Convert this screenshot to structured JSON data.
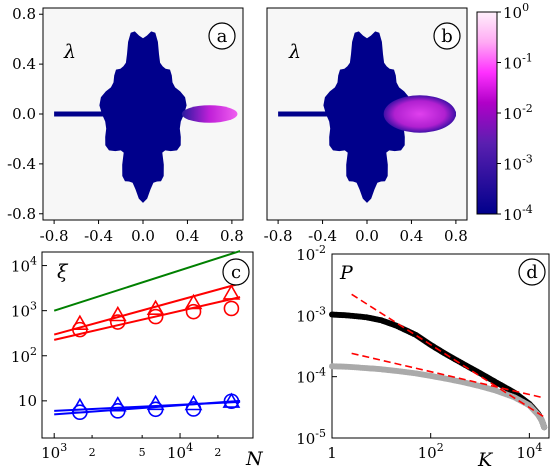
{
  "colors": {
    "density_low": "#00008b",
    "density_high": "#ff00ff",
    "neutral": "#f7f7f7",
    "power_law_green": "#008000",
    "fit_red": "#ff0000",
    "blue": "#0000ff",
    "black": "#000000",
    "gray": "#aaaaaa",
    "dashed_red": "#ff0000"
  },
  "chart_data": [
    {
      "id": "a",
      "type": "heatmap",
      "panel_label": "a",
      "symbol": "λ",
      "xlim": [
        -0.9,
        0.9
      ],
      "ylim": [
        -0.85,
        0.85
      ],
      "xticks": [
        "-0.8",
        "-0.4",
        "0.0",
        "0.4",
        "0.8"
      ],
      "xtick_values": [
        -0.8,
        -0.4,
        0.0,
        0.4,
        0.8
      ],
      "yticks": [
        "0.8",
        "0.4",
        "0.0",
        "-0.4",
        "-0.8"
      ],
      "ytick_values": [
        0.8,
        0.4,
        0.0,
        -0.4,
        -0.8
      ],
      "regions": [
        {
          "shape": "cloud",
          "center": [
            0.0,
            0.0
          ],
          "rx": 0.37,
          "ry": 0.66,
          "density": 0.0003
        },
        {
          "shape": "lobe",
          "x_range": [
            0.35,
            0.85
          ],
          "half_width": 0.07,
          "density": 0.05
        }
      ]
    },
    {
      "id": "b",
      "type": "heatmap",
      "panel_label": "b",
      "symbol": "λ",
      "xlim": [
        -0.9,
        0.9
      ],
      "ylim": [
        -0.85,
        0.85
      ],
      "xticks": [
        "-0.8",
        "-0.4",
        "0.0",
        "0.4",
        "0.8"
      ],
      "xtick_values": [
        -0.8,
        -0.4,
        0.0,
        0.4,
        0.8
      ],
      "regions": [
        {
          "shape": "cloud",
          "center": [
            0.0,
            0.0
          ],
          "rx": 0.37,
          "ry": 0.66,
          "density": 0.0003
        },
        {
          "shape": "lobe",
          "x_range": [
            0.15,
            0.8
          ],
          "half_width": 0.15,
          "density": 0.05
        }
      ],
      "colorbar": {
        "range": [
          0.0001,
          1
        ],
        "scale": "log",
        "ticks": [
          {
            "base": "10",
            "exp": "0"
          },
          {
            "base": "10",
            "exp": "-1"
          },
          {
            "base": "10",
            "exp": "-2"
          },
          {
            "base": "10",
            "exp": "-3"
          },
          {
            "base": "10",
            "exp": "-4"
          }
        ],
        "tick_values": [
          1,
          0.1,
          0.01,
          0.001,
          0.0001
        ]
      }
    },
    {
      "id": "c",
      "type": "scatter",
      "panel_label": "c",
      "xlabel": "N",
      "ylabel": "ξ",
      "xscale": "log",
      "yscale": "log",
      "xlim": [
        800,
        38000
      ],
      "ylim": [
        1.5,
        20000
      ],
      "xticks": [
        {
          "value": 1000,
          "base": "10",
          "exp": "3"
        },
        {
          "value": 10000,
          "base": "10",
          "exp": "4"
        }
      ],
      "xminor_labels": [
        {
          "value": 2000,
          "label": "2"
        },
        {
          "value": 5000,
          "label": "5"
        },
        {
          "value": 20000,
          "label": "2"
        }
      ],
      "yticks": [
        {
          "value": 10,
          "plain": "10"
        },
        {
          "value": 100,
          "base": "10",
          "exp": "2"
        },
        {
          "value": 1000,
          "base": "10",
          "exp": "3"
        },
        {
          "value": 10000,
          "base": "10",
          "exp": "4"
        }
      ],
      "lines": [
        {
          "color": "#008000",
          "x": [
            1000,
            30000
          ],
          "y": [
            1000,
            21000
          ]
        },
        {
          "color": "#ff0000",
          "x": [
            1000,
            30000
          ],
          "y": [
            295,
            4000
          ]
        },
        {
          "color": "#ff0000",
          "x": [
            1000,
            30000
          ],
          "y": [
            225,
            2000
          ]
        },
        {
          "color": "#0000ff",
          "x": [
            1000,
            30000
          ],
          "y": [
            6.0,
            9.5
          ]
        },
        {
          "color": "#0000ff",
          "x": [
            1000,
            30000
          ],
          "y": [
            5.0,
            10.0
          ]
        }
      ],
      "series": [
        {
          "marker": "triangle",
          "color": "#ff0000",
          "x": [
            1600,
            3200,
            6400,
            12800,
            25600
          ],
          "y": [
            500,
            780,
            1080,
            1450,
            2350
          ]
        },
        {
          "marker": "circle",
          "color": "#ff0000",
          "x": [
            1600,
            3200,
            6400,
            12800,
            25600
          ],
          "y": [
            380,
            560,
            740,
            950,
            1120
          ]
        },
        {
          "marker": "triangle",
          "color": "#0000ff",
          "x": [
            1600,
            3200,
            6400,
            12800,
            25600
          ],
          "y": [
            7.2,
            7.8,
            8.4,
            8.3,
            9.4
          ]
        },
        {
          "marker": "circle",
          "color": "#0000ff",
          "x": [
            1600,
            3200,
            6400,
            12800,
            25600
          ],
          "y": [
            5.6,
            6.0,
            6.5,
            6.6,
            9.8
          ]
        }
      ]
    },
    {
      "id": "d",
      "type": "scatter",
      "panel_label": "d",
      "xlabel": "K",
      "ylabel": "P",
      "xscale": "log",
      "yscale": "log",
      "xlim": [
        1,
        25000
      ],
      "ylim": [
        1e-05,
        0.01
      ],
      "xticks": [
        {
          "value": 1,
          "plain": "1"
        },
        {
          "value": 100,
          "base": "10",
          "exp": "2"
        },
        {
          "value": 10000,
          "base": "10",
          "exp": "4"
        }
      ],
      "yticks": [
        {
          "value": 0.01,
          "base": "10",
          "exp": "-2"
        },
        {
          "value": 0.001,
          "base": "10",
          "exp": "-3"
        },
        {
          "value": 0.0001,
          "base": "10",
          "exp": "-4"
        },
        {
          "value": 1e-05,
          "base": "10",
          "exp": "-5"
        }
      ],
      "curves": [
        {
          "color": "#000000",
          "points": [
            [
              1,
              0.00103
            ],
            [
              2,
              0.001
            ],
            [
              5,
              0.00093
            ],
            [
              10,
              0.00083
            ],
            [
              20,
              0.00068
            ],
            [
              50,
              0.00048
            ],
            [
              100,
              0.00033
            ],
            [
              200,
              0.000235
            ],
            [
              500,
              0.000155
            ],
            [
              1000,
              0.000114
            ],
            [
              2000,
              8.3e-05
            ],
            [
              5000,
              5.5e-05
            ],
            [
              10000,
              3.6e-05
            ],
            [
              15000,
              2.5e-05
            ],
            [
              18000,
              1.9e-05
            ],
            [
              20000,
              1.5e-05
            ]
          ]
        },
        {
          "color": "#aaaaaa",
          "points": [
            [
              1,
              0.000148
            ],
            [
              2,
              0.000145
            ],
            [
              5,
              0.000138
            ],
            [
              10,
              0.000132
            ],
            [
              20,
              0.000124
            ],
            [
              50,
              0.000113
            ],
            [
              100,
              0.000103
            ],
            [
              200,
              9.3e-05
            ],
            [
              500,
              8e-05
            ],
            [
              1000,
              7e-05
            ],
            [
              2000,
              6e-05
            ],
            [
              5000,
              4.6e-05
            ],
            [
              10000,
              3.4e-05
            ],
            [
              15000,
              2.4e-05
            ],
            [
              18000,
              1.9e-05
            ],
            [
              20000,
              1.5e-05
            ]
          ]
        }
      ],
      "fits": [
        {
          "color": "#ff0000",
          "dashed": true,
          "x": [
            2.5,
            20000
          ],
          "y": [
            0.0022,
            2.2e-05
          ]
        },
        {
          "color": "#ff0000",
          "dashed": true,
          "x": [
            2.5,
            20000
          ],
          "y": [
            0.00024,
            4.5e-05
          ]
        }
      ]
    }
  ]
}
